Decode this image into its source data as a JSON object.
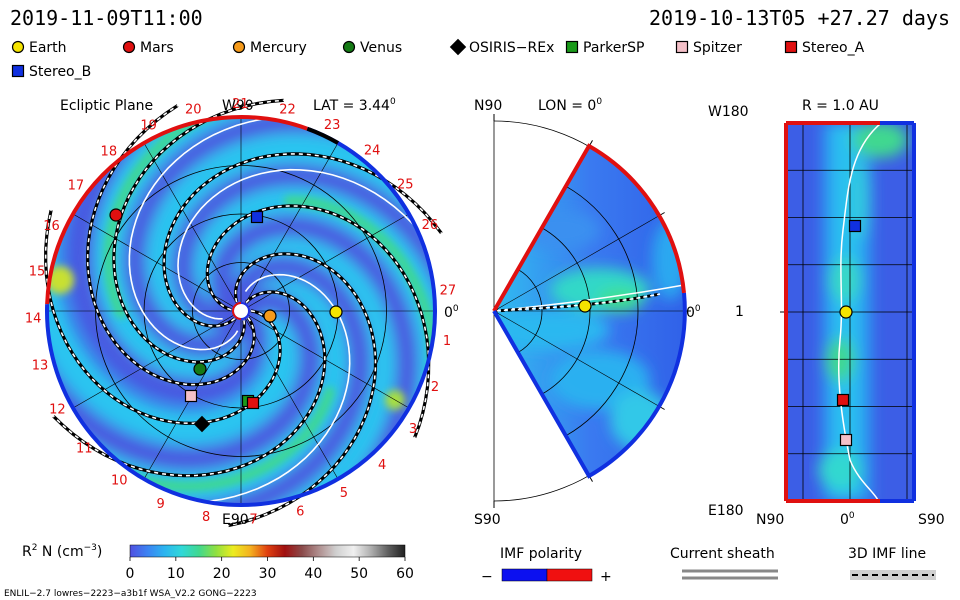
{
  "header": {
    "date_left": "2019-11-09T11:00",
    "date_right": "2019-10-13T05 +27.27 days"
  },
  "legend": [
    {
      "name": "Earth",
      "shape": "circle",
      "color": "#f5e400"
    },
    {
      "name": "Mars",
      "shape": "circle",
      "color": "#e01010"
    },
    {
      "name": "Mercury",
      "shape": "circle",
      "color": "#f59a1a"
    },
    {
      "name": "Venus",
      "shape": "circle",
      "color": "#157a15"
    },
    {
      "name": "OSIRIS−REx",
      "shape": "diamond",
      "color": "#000000"
    },
    {
      "name": "ParkerSP",
      "shape": "square",
      "color": "#1a9a1a"
    },
    {
      "name": "Spitzer",
      "shape": "square",
      "color": "#f4c0c8"
    },
    {
      "name": "Stereo_A",
      "shape": "square",
      "color": "#e01010"
    },
    {
      "name": "Stereo_B",
      "shape": "square",
      "color": "#1030e0"
    }
  ],
  "ecliptic": {
    "title": "Ecliptic Plane",
    "top_label": "W90",
    "lat_label": "LAT = 3.44",
    "lat_sup": "0",
    "bottom_label": "E90",
    "right_label": "0",
    "right_sup": "0",
    "carrington": [
      "1",
      "2",
      "3",
      "4",
      "5",
      "6",
      "7",
      "8",
      "9",
      "10",
      "11",
      "12",
      "13",
      "14",
      "15",
      "16",
      "17",
      "18",
      "19",
      "20",
      "21",
      "22",
      "23",
      "24",
      "25",
      "26",
      "27"
    ]
  },
  "meridional": {
    "top_left": "N90",
    "lon_label": "LON = 0",
    "lon_sup": "0",
    "bottom_left": "S90",
    "right_label": "0",
    "right_sup": "0"
  },
  "shell": {
    "title": "R = 1.0 AU",
    "y_top": "W180",
    "y_mid": "1",
    "y_bottom": "E180",
    "x_left": "N90",
    "x_mid": "0",
    "x_mid_sup": "0",
    "x_right": "S90"
  },
  "colorbar": {
    "label_prefix": "R",
    "label_sup": "2",
    "label_mid": " N (cm",
    "label_sup2": "−3",
    "label_suffix": ")",
    "ticks": [
      "0",
      "10",
      "20",
      "30",
      "40",
      "50",
      "60"
    ],
    "colors": [
      "#5050e0",
      "#3c82f2",
      "#2cb4f0",
      "#30d8d8",
      "#40d890",
      "#90e040",
      "#ecec20",
      "#f4b020",
      "#e04010",
      "#a01010",
      "#8a4a4a",
      "#b09090",
      "#d0d0d0",
      "#f0f0f0",
      "#b0b0b0",
      "#606060",
      "#202020"
    ]
  },
  "imf": {
    "title": "IMF polarity",
    "minus": "−",
    "plus": "+",
    "neg_color": "#0c10f0",
    "pos_color": "#f01010"
  },
  "sheath": {
    "title": "Current sheath"
  },
  "imf3d": {
    "title": "3D IMF line"
  },
  "footer": {
    "left": "ENLIL−2.7 lowres−2223−a3b1f WSA_V2.2 GONG−2223"
  }
}
